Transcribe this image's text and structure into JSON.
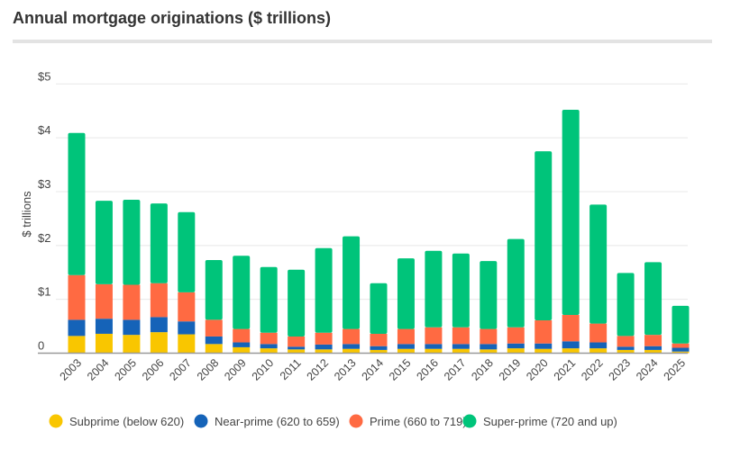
{
  "chart_data": {
    "type": "bar",
    "stacked": true,
    "title": "Annual mortgage originations ($ trillions)",
    "xlabel": "",
    "ylabel": "$ trillions",
    "ylim": [
      0,
      5
    ],
    "yticks": [
      "0",
      "$1",
      "$2",
      "$3",
      "$4",
      "$5"
    ],
    "grid": true,
    "legend_position": "bottom",
    "categories": [
      "2003",
      "2004",
      "2005",
      "2006",
      "2007",
      "2008",
      "2009",
      "2010",
      "2011",
      "2012",
      "2013",
      "2014",
      "2015",
      "2016",
      "2017",
      "2018",
      "2019",
      "2020",
      "2021",
      "2022",
      "2023",
      "2024",
      "2025"
    ],
    "series": [
      {
        "name": "Subprime (below 620)",
        "color": "#F9C600",
        "values": [
          0.32,
          0.36,
          0.34,
          0.39,
          0.35,
          0.17,
          0.11,
          0.09,
          0.07,
          0.07,
          0.08,
          0.06,
          0.08,
          0.08,
          0.08,
          0.07,
          0.09,
          0.08,
          0.09,
          0.09,
          0.06,
          0.06,
          0.03
        ]
      },
      {
        "name": "Near-prime (620 to 659)",
        "color": "#1563B8",
        "values": [
          0.3,
          0.28,
          0.28,
          0.28,
          0.24,
          0.14,
          0.09,
          0.08,
          0.05,
          0.09,
          0.09,
          0.07,
          0.09,
          0.09,
          0.09,
          0.1,
          0.09,
          0.1,
          0.13,
          0.11,
          0.06,
          0.07,
          0.07
        ]
      },
      {
        "name": "Prime (660 to 719)",
        "color": "#FF6A42",
        "values": [
          0.83,
          0.64,
          0.65,
          0.63,
          0.54,
          0.31,
          0.25,
          0.21,
          0.19,
          0.22,
          0.28,
          0.23,
          0.28,
          0.31,
          0.31,
          0.28,
          0.3,
          0.43,
          0.49,
          0.35,
          0.2,
          0.21,
          0.08
        ]
      },
      {
        "name": "Super-prime (720 and up)",
        "color": "#00C47A",
        "values": [
          2.64,
          1.55,
          1.58,
          1.48,
          1.49,
          1.11,
          1.36,
          1.22,
          1.24,
          1.57,
          1.72,
          0.94,
          1.31,
          1.42,
          1.37,
          1.26,
          1.64,
          3.14,
          3.81,
          2.21,
          1.17,
          1.35,
          0.7
        ]
      }
    ]
  }
}
